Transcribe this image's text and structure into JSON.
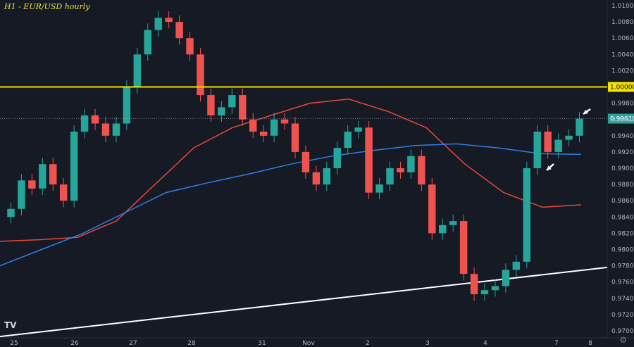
{
  "chart_data": {
    "type": "candlestick",
    "title": "H1 - EUR/USD hourly",
    "ylim": [
      0.97,
      1.01
    ],
    "y_ticks": [
      "1.01000",
      "1.00800",
      "1.00600",
      "1.00400",
      "1.00200",
      "0.99800",
      "0.99600",
      "0.99400",
      "0.99200",
      "0.99000",
      "0.98800",
      "0.98600",
      "0.98400",
      "0.98200",
      "0.98000",
      "0.97800",
      "0.97600",
      "0.97400",
      "0.97200",
      "0.97000"
    ],
    "x_ticks": [
      "25",
      "26",
      "27",
      "28",
      "31",
      "Nov",
      "2",
      "3",
      "4",
      "7",
      "8"
    ],
    "horizontal_levels": [
      {
        "label": "1.00000",
        "value": 1.0,
        "color": "#f5e400"
      },
      {
        "label": "0.99610",
        "value": 0.9961,
        "color": "#26a69a"
      }
    ],
    "close_series": [
      {
        "date": "Oct 25",
        "value": 0.985
      },
      {
        "date": "Oct 25",
        "value": 0.9885
      },
      {
        "date": "Oct 25",
        "value": 0.9875
      },
      {
        "date": "Oct 25",
        "value": 0.9905
      },
      {
        "date": "Oct 25",
        "value": 0.988
      },
      {
        "date": "Oct 26",
        "value": 0.986
      },
      {
        "date": "Oct 26",
        "value": 0.9945
      },
      {
        "date": "Oct 26",
        "value": 0.9965
      },
      {
        "date": "Oct 26",
        "value": 0.9955
      },
      {
        "date": "Oct 26",
        "value": 0.994
      },
      {
        "date": "Oct 26",
        "value": 0.9955
      },
      {
        "date": "Oct 27",
        "value": 1.0
      },
      {
        "date": "Oct 27",
        "value": 1.004
      },
      {
        "date": "Oct 27",
        "value": 1.007
      },
      {
        "date": "Oct 27",
        "value": 1.0085
      },
      {
        "date": "Oct 27",
        "value": 1.008
      },
      {
        "date": "Oct 27",
        "value": 1.006
      },
      {
        "date": "Oct 28",
        "value": 1.004
      },
      {
        "date": "Oct 28",
        "value": 0.999
      },
      {
        "date": "Oct 28",
        "value": 0.9965
      },
      {
        "date": "Oct 28",
        "value": 0.9975
      },
      {
        "date": "Oct 28",
        "value": 0.999
      },
      {
        "date": "Oct 28",
        "value": 0.996
      },
      {
        "date": "Oct 31",
        "value": 0.9945
      },
      {
        "date": "Oct 31",
        "value": 0.994
      },
      {
        "date": "Oct 31",
        "value": 0.996
      },
      {
        "date": "Oct 31",
        "value": 0.9955
      },
      {
        "date": "Oct 31",
        "value": 0.992
      },
      {
        "date": "Oct 31",
        "value": 0.9895
      },
      {
        "date": "Nov 1",
        "value": 0.988
      },
      {
        "date": "Nov 1",
        "value": 0.99
      },
      {
        "date": "Nov 1",
        "value": 0.9925
      },
      {
        "date": "Nov 1",
        "value": 0.9945
      },
      {
        "date": "Nov 1",
        "value": 0.995
      },
      {
        "date": "Nov 2",
        "value": 0.987
      },
      {
        "date": "Nov 2",
        "value": 0.988
      },
      {
        "date": "Nov 2",
        "value": 0.99
      },
      {
        "date": "Nov 2",
        "value": 0.9895
      },
      {
        "date": "Nov 2",
        "value": 0.9915
      },
      {
        "date": "Nov 3",
        "value": 0.988
      },
      {
        "date": "Nov 3",
        "value": 0.982
      },
      {
        "date": "Nov 3",
        "value": 0.983
      },
      {
        "date": "Nov 3",
        "value": 0.9835
      },
      {
        "date": "Nov 4",
        "value": 0.977
      },
      {
        "date": "Nov 4",
        "value": 0.9745
      },
      {
        "date": "Nov 4",
        "value": 0.975
      },
      {
        "date": "Nov 4",
        "value": 0.9755
      },
      {
        "date": "Nov 4",
        "value": 0.9775
      },
      {
        "date": "Nov 4",
        "value": 0.9785
      },
      {
        "date": "Nov 7",
        "value": 0.99
      },
      {
        "date": "Nov 7",
        "value": 0.9945
      },
      {
        "date": "Nov 7",
        "value": 0.992
      },
      {
        "date": "Nov 7",
        "value": 0.9935
      },
      {
        "date": "Nov 7",
        "value": 0.994
      },
      {
        "date": "Nov 7",
        "value": 0.9961
      }
    ],
    "overlays": [
      {
        "type": "moving_average",
        "color": "#e8473b",
        "values": [
          0.981,
          0.9812,
          0.9815,
          0.9835,
          0.988,
          0.9925,
          0.995,
          0.9965,
          0.998,
          0.9985,
          0.997,
          0.995,
          0.9905,
          0.987,
          0.9852,
          0.9855
        ]
      },
      {
        "type": "moving_average",
        "color": "#2e7fe6",
        "values": [
          0.978,
          0.98,
          0.982,
          0.9845,
          0.987,
          0.9882,
          0.9893,
          0.9905,
          0.9915,
          0.9922,
          0.9928,
          0.993,
          0.9925,
          0.9918,
          0.9917
        ]
      },
      {
        "type": "trendline",
        "color": "#ffffff",
        "values": [
          0.9693,
          0.9778
        ]
      }
    ],
    "annotations": [
      {
        "type": "arrow",
        "color": "#ffffff"
      },
      {
        "type": "arrow",
        "color": "#ffffff"
      }
    ],
    "grid": false,
    "colors": {
      "background": "#161a25",
      "up": "#26a69a",
      "down": "#ef5350",
      "axis_text": "#b2b5be"
    }
  },
  "ui": {
    "title": "H1 - EUR/USD hourly",
    "logo": "TV",
    "settings_icon": "gear-icon"
  }
}
